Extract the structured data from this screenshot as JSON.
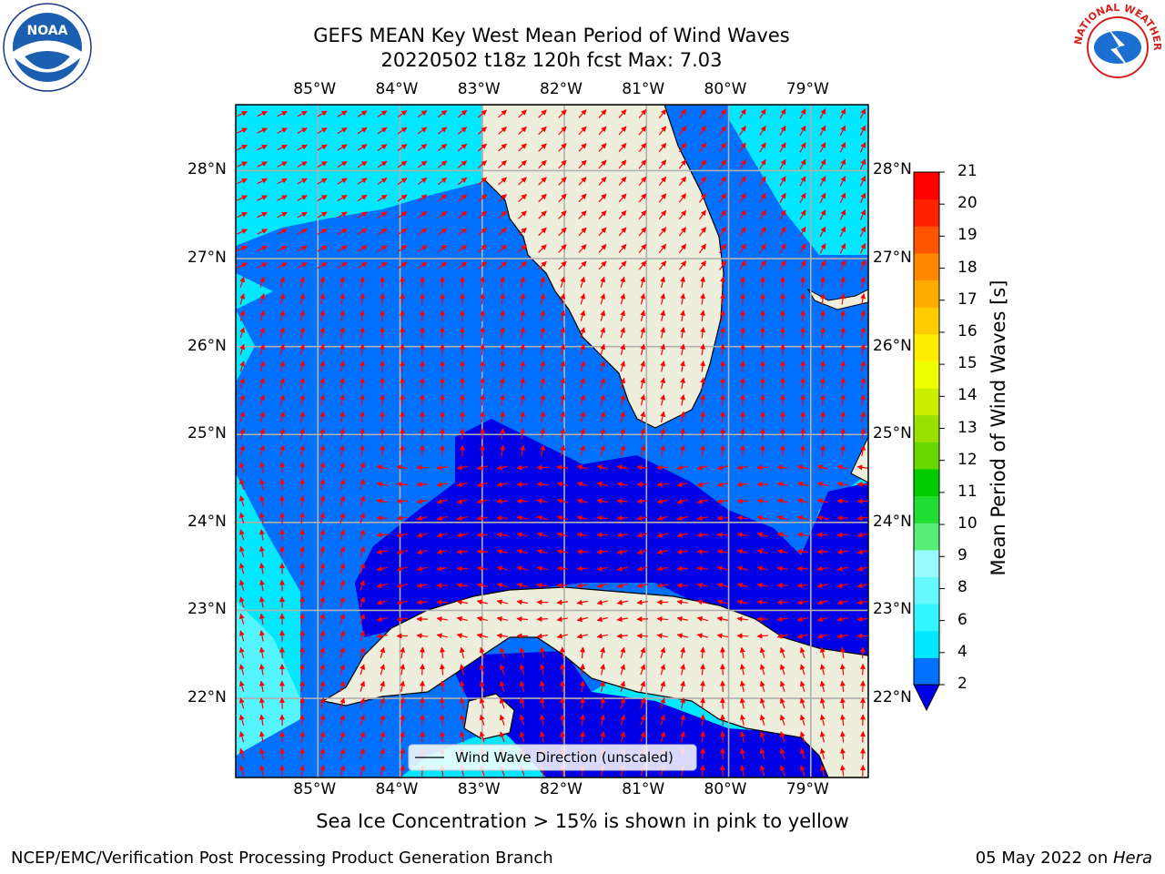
{
  "title": {
    "line1": "GEFS MEAN Key West Mean Period of Wind Waves",
    "line2": "20220502 t18z 120h fcst   Max: 7.03"
  },
  "map": {
    "lon_labels": [
      "85°W",
      "84°W",
      "83°W",
      "82°W",
      "81°W",
      "80°W",
      "79°W"
    ],
    "lat_labels": [
      "28°N",
      "27°N",
      "26°N",
      "25°N",
      "24°N",
      "23°N",
      "22°N"
    ],
    "lon_range": [
      -86,
      -78.3
    ],
    "lat_range": [
      21.1,
      28.75
    ],
    "legend_label": "Wind Wave Direction (unscaled)",
    "arrow_color": "#ff0000",
    "land_color": "#eeeedd"
  },
  "colorbar": {
    "label": "Mean Period of Wind Waves [s]",
    "ticks": [
      "2",
      "4",
      "6",
      "8",
      "9",
      "10",
      "11",
      "12",
      "13",
      "14",
      "15",
      "16",
      "17",
      "18",
      "19",
      "20",
      "21"
    ],
    "colors": [
      "#0070ff",
      "#00e8ff",
      "#33f5ff",
      "#66f8ff",
      "#99fbff",
      "#55ee77",
      "#22dd33",
      "#00cc00",
      "#66d800",
      "#99e000",
      "#ccee00",
      "#eeff00",
      "#ffee00",
      "#ffcc00",
      "#ffaa00",
      "#ff8800",
      "#ff5500",
      "#ff2200",
      "#ff0000"
    ]
  },
  "ice_note": "Sea Ice Concentration > 15% is shown in pink to yellow",
  "footer": {
    "left": "NCEP/EMC/Verification Post Processing Product Generation Branch",
    "right_prefix": "05 May 2022 on ",
    "right_host": "Hera"
  },
  "logos": {
    "noaa_text": "NOAA",
    "nws_text": "NATIONAL WEATHER SERVICE"
  }
}
